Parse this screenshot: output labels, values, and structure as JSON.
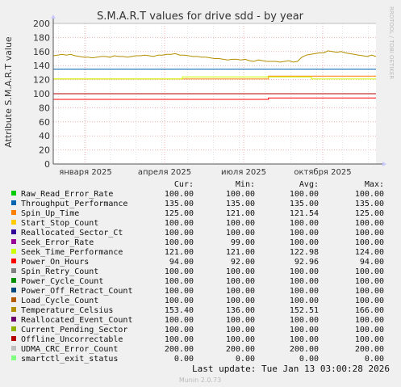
{
  "chart_data": {
    "type": "line",
    "title": "S.M.A.R.T values for drive sdd - by year",
    "ylabel": "Attribute S.M.A.R.T value",
    "side_label": "RRDTOOL / TOBI OETIKER",
    "footer": "Munin 2.0.73",
    "last_update": "Last update: Tue Jan 13 03:00:28 2026",
    "ylim": [
      0,
      200
    ],
    "y_ticks": [
      0,
      20,
      40,
      60,
      80,
      100,
      120,
      140,
      160,
      180,
      200
    ],
    "x_ticks": [
      "января 2025",
      "апреля 2025",
      "июля 2025",
      "октября 2025"
    ],
    "grid": true,
    "columns": [
      "Cur:",
      "Min:",
      "Avg:",
      "Max:"
    ],
    "series": [
      {
        "name": "Raw_Read_Error_Rate",
        "color": "#00cc00",
        "cur": "100.00",
        "min": "100.00",
        "avg": "100.00",
        "max": "100.00",
        "values": [
          100,
          100
        ]
      },
      {
        "name": "Throughput_Performance",
        "color": "#0066b3",
        "cur": "135.00",
        "min": "135.00",
        "avg": "135.00",
        "max": "135.00",
        "values": [
          135,
          135
        ]
      },
      {
        "name": "Spin_Up_Time",
        "color": "#ff8000",
        "cur": "125.00",
        "min": "121.00",
        "avg": "121.54",
        "max": "125.00",
        "values": [
          121,
          121,
          125,
          125
        ]
      },
      {
        "name": "Start_Stop_Count",
        "color": "#ffcc00",
        "cur": "100.00",
        "min": "100.00",
        "avg": "100.00",
        "max": "100.00",
        "values": [
          100,
          100
        ]
      },
      {
        "name": "Reallocated_Sector_Ct",
        "color": "#330099",
        "cur": "100.00",
        "min": "100.00",
        "avg": "100.00",
        "max": "100.00",
        "values": [
          100,
          100
        ]
      },
      {
        "name": "Seek_Error_Rate",
        "color": "#990099",
        "cur": "100.00",
        "min": "99.00",
        "avg": "100.00",
        "max": "100.00",
        "values": [
          100,
          100
        ]
      },
      {
        "name": "Seek_Time_Performance",
        "color": "#ccff00",
        "cur": "121.00",
        "min": "121.00",
        "avg": "122.98",
        "max": "124.00",
        "values": [
          121,
          121,
          124,
          124,
          121,
          121
        ]
      },
      {
        "name": "Power_On_Hours",
        "color": "#ff0000",
        "cur": "94.00",
        "min": "92.00",
        "avg": "92.96",
        "max": "94.00",
        "values": [
          92,
          92,
          94,
          94
        ]
      },
      {
        "name": "Spin_Retry_Count",
        "color": "#808080",
        "cur": "100.00",
        "min": "100.00",
        "avg": "100.00",
        "max": "100.00",
        "values": [
          100,
          100
        ]
      },
      {
        "name": "Power_Cycle_Count",
        "color": "#008f00",
        "cur": "100.00",
        "min": "100.00",
        "avg": "100.00",
        "max": "100.00",
        "values": [
          100,
          100
        ]
      },
      {
        "name": "Power_Off_Retract_Count",
        "color": "#00487d",
        "cur": "100.00",
        "min": "100.00",
        "avg": "100.00",
        "max": "100.00",
        "values": [
          100,
          100
        ]
      },
      {
        "name": "Load_Cycle_Count",
        "color": "#b35a00",
        "cur": "100.00",
        "min": "100.00",
        "avg": "100.00",
        "max": "100.00",
        "values": [
          100,
          100
        ]
      },
      {
        "name": "Temperature_Celsius",
        "color": "#b38f00",
        "cur": "153.40",
        "min": "136.00",
        "avg": "152.51",
        "max": "166.00",
        "values": [
          154,
          155,
          156,
          155,
          156,
          154,
          153,
          152,
          152,
          151,
          152,
          153,
          153,
          152,
          154,
          153,
          153,
          152,
          153,
          154,
          154,
          155,
          154,
          153,
          155,
          155,
          156,
          156,
          157,
          155,
          155,
          154,
          153,
          153,
          152,
          152,
          151,
          150,
          150,
          149,
          148,
          149,
          149,
          148,
          149,
          147,
          146,
          148,
          147,
          146,
          146,
          146,
          145,
          146,
          147,
          145,
          146,
          152,
          155,
          156,
          157,
          158,
          158,
          161,
          160,
          159,
          160,
          158,
          157,
          156,
          155,
          154,
          153,
          155,
          153
        ]
      },
      {
        "name": "Reallocated_Event_Count",
        "color": "#6b006b",
        "cur": "100.00",
        "min": "100.00",
        "avg": "100.00",
        "max": "100.00",
        "values": [
          100,
          100
        ]
      },
      {
        "name": "Current_Pending_Sector",
        "color": "#8fb300",
        "cur": "100.00",
        "min": "100.00",
        "avg": "100.00",
        "max": "100.00",
        "values": [
          100,
          100
        ]
      },
      {
        "name": "Offline_Uncorrectable",
        "color": "#b30000",
        "cur": "100.00",
        "min": "100.00",
        "avg": "100.00",
        "max": "100.00",
        "values": [
          100,
          100
        ]
      },
      {
        "name": "UDMA_CRC_Error_Count",
        "color": "#bebebe",
        "cur": "200.00",
        "min": "200.00",
        "avg": "200.00",
        "max": "200.00",
        "values": [
          200,
          200
        ]
      },
      {
        "name": "smartctl_exit_status",
        "color": "#80ff80",
        "cur": "0.00",
        "min": "0.00",
        "avg": "0.00",
        "max": "0.00",
        "values": [
          0,
          0
        ]
      }
    ]
  }
}
